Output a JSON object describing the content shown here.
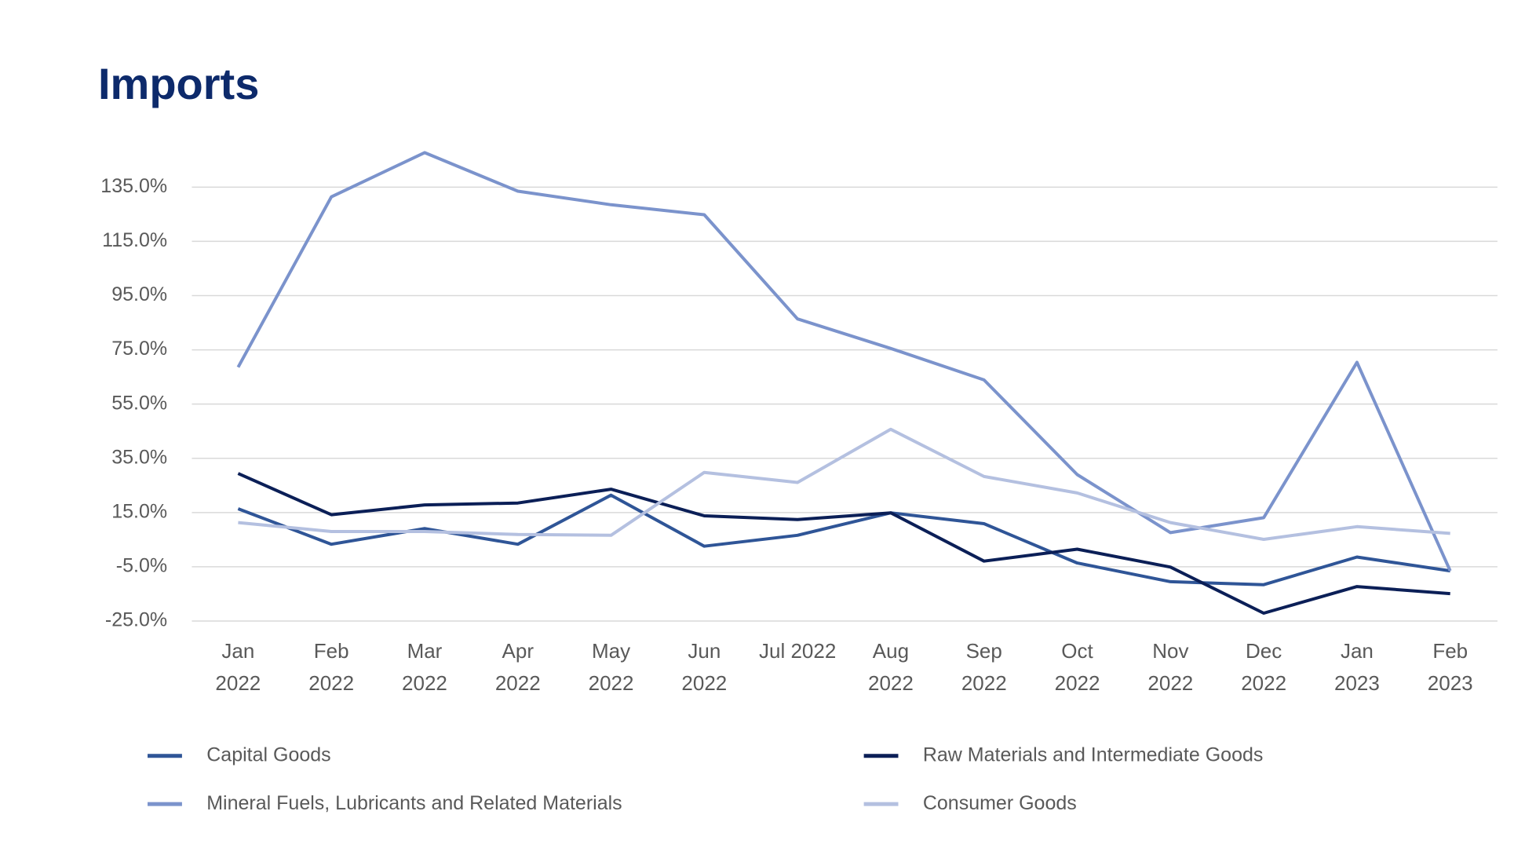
{
  "chart_data": {
    "type": "line",
    "title": "Imports",
    "categories": [
      "Jan\n2022",
      "Feb\n2022",
      "Mar\n2022",
      "Apr\n2022",
      "May\n2022",
      "Jun\n2022",
      "Jul 2022",
      "Aug\n2022",
      "Sep\n2022",
      "Oct\n2022",
      "Nov\n2022",
      "Dec\n2022",
      "Jan\n2023",
      "Feb\n2023"
    ],
    "series": [
      {
        "name": "Capital Goods",
        "color": "#2f5597",
        "values": [
          16.4,
          3.3,
          9.1,
          3.3,
          21.4,
          2.6,
          6.6,
          14.9,
          10.9,
          -3.6,
          -10.5,
          -11.6,
          -1.4,
          -6.5
        ]
      },
      {
        "name": "Raw Materials and Intermediate Goods",
        "color": "#0b1f57",
        "values": [
          29.4,
          14.2,
          17.8,
          18.5,
          23.6,
          13.8,
          12.4,
          14.9,
          -2.9,
          1.5,
          -5.1,
          -22.1,
          -12.3,
          -14.9
        ]
      },
      {
        "name": "Mineral Fuels, Lubricants and Related Materials",
        "color": "#7b93cc",
        "values": [
          68.6,
          131.4,
          147.7,
          133.5,
          128.5,
          124.8,
          86.4,
          75.5,
          63.9,
          29.0,
          7.6,
          13.1,
          70.4,
          -6.5
        ]
      },
      {
        "name": "Consumer Goods",
        "color": "#b4c0e0",
        "values": [
          11.3,
          8.0,
          8.0,
          6.9,
          6.6,
          29.8,
          26.1,
          45.7,
          28.3,
          22.2,
          11.3,
          5.1,
          9.8,
          7.3
        ]
      }
    ],
    "ylim": [
      -25,
      155
    ],
    "yticks": [
      {
        "value": -25,
        "label": "-25.0%"
      },
      {
        "value": -5,
        "label": "-5.0%"
      },
      {
        "value": 15,
        "label": "15.0%"
      },
      {
        "value": 35,
        "label": "35.0%"
      },
      {
        "value": 55,
        "label": "55.0%"
      },
      {
        "value": 75,
        "label": "75.0%"
      },
      {
        "value": 95,
        "label": "95.0%"
      },
      {
        "value": 115,
        "label": "115.0%"
      },
      {
        "value": 135,
        "label": "135.0%"
      }
    ],
    "grid": true,
    "legend": "bottom"
  }
}
